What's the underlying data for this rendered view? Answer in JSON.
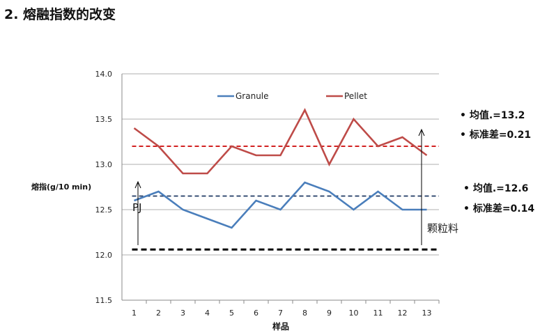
{
  "title": "2. 熔融指数的改变",
  "chart_data": {
    "type": "line",
    "categories": [
      "1",
      "2",
      "3",
      "4",
      "5",
      "6",
      "7",
      "8",
      "9",
      "10",
      "11",
      "12",
      "13"
    ],
    "series": [
      {
        "name": "Granule",
        "color": "#4a7ebb",
        "values": [
          12.6,
          12.7,
          12.5,
          12.4,
          12.3,
          12.6,
          12.5,
          12.8,
          12.7,
          12.5,
          12.7,
          12.5,
          12.5
        ]
      },
      {
        "name": "Pellet",
        "color": "#be4b48",
        "values": [
          13.4,
          13.2,
          12.9,
          12.9,
          13.2,
          13.1,
          13.1,
          13.6,
          13.0,
          13.5,
          13.2,
          13.3,
          13.1
        ]
      }
    ],
    "reference_lines": [
      {
        "value": 13.2,
        "color": "#cc0000"
      },
      {
        "value": 12.65,
        "color": "#1f3864"
      },
      {
        "value": 12.06,
        "color": "#000000"
      }
    ],
    "ylim": [
      11.5,
      14.0
    ],
    "yticks": [
      "11.5",
      "12.0",
      "12.5",
      "13.0",
      "13.5",
      "14.0"
    ],
    "xlabel": "样品",
    "ylabel": "熔指(g/10 min)",
    "grid": true,
    "legend": "top",
    "annotations": {
      "pj": "PJ",
      "granule_label": "颗粒料"
    }
  },
  "stats": {
    "pellet_mean": "• 均值.=13.2",
    "pellet_std": "• 标准差=0.21",
    "granule_mean": "• 均值.=12.6",
    "granule_std": "• 标准差=0.14"
  }
}
